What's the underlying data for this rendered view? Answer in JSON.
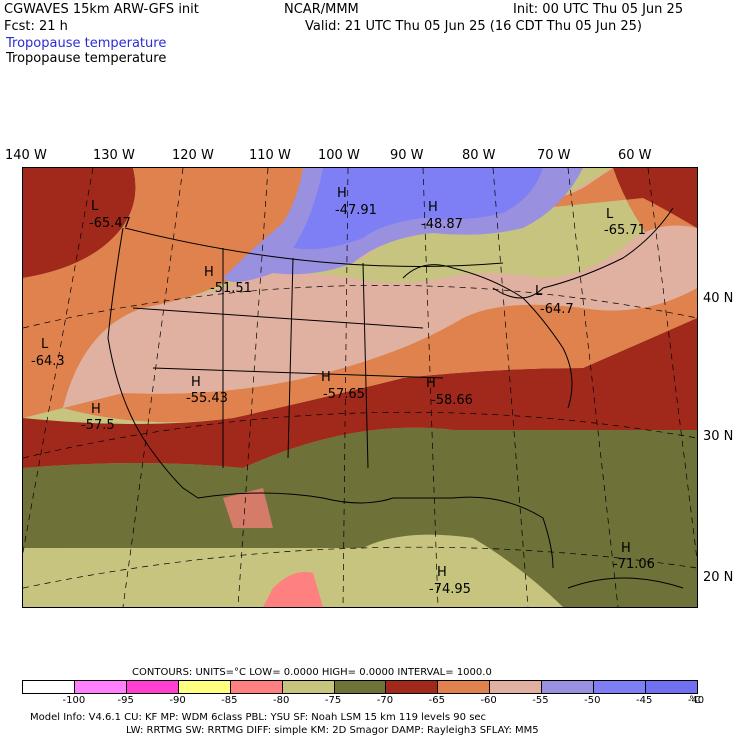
{
  "header": {
    "model": "CGWAVES 15km ARW-GFS init",
    "center": "NCAR/MMM",
    "init": "Init: 00 UTC Thu 05 Jun 25",
    "fcst": "Fcst:   21 h",
    "valid": "Valid: 21 UTC Thu 05 Jun 25 (16 CDT Thu 05 Jun 25)",
    "field_blue": "Tropopause temperature",
    "field_black": "Tropopause temperature"
  },
  "axes": {
    "longitudes": [
      "140 W",
      "130 W",
      "120 W",
      "110 W",
      "100 W",
      "90 W",
      "80 W",
      "70 W",
      "60 W"
    ],
    "latitudes": [
      "40 N",
      "30 N",
      "20 N"
    ]
  },
  "map_labels": [
    {
      "hl": "L",
      "value": "-65.47"
    },
    {
      "hl": "H",
      "value": "-47.91"
    },
    {
      "hl": "H",
      "value": "-48.87"
    },
    {
      "hl": "L",
      "value": "-65.71"
    },
    {
      "hl": "H",
      "value": "-51.51"
    },
    {
      "hl": "L",
      "value": "-64.7"
    },
    {
      "hl": "L",
      "value": "-64.3"
    },
    {
      "hl": "H",
      "value": "-55.43"
    },
    {
      "hl": "H",
      "value": "-57.65"
    },
    {
      "hl": "H",
      "value": "-58.66"
    },
    {
      "hl": "H",
      "value": "-57.5"
    },
    {
      "hl": "H",
      "value": "-71.06"
    },
    {
      "hl": "H",
      "value": "-74.95"
    }
  ],
  "contours_line": "CONTOURS:  UNITS=°C  LOW=  0.0000        HIGH=  0.0000        INTERVAL=   1000.0",
  "colorbar": {
    "colors": [
      "#ffffff",
      "#ff80ff",
      "#ff40d0",
      "#ffff80",
      "#ff8080",
      "#c6c47e",
      "#6e7138",
      "#a0291c",
      "#e0824e",
      "#e0b0a0",
      "#9a90e0",
      "#7f7ff5",
      "#7070f0"
    ],
    "labels": [
      "-100",
      "-95",
      "-90",
      "-85",
      "-80",
      "-75",
      "-70",
      "-65",
      "-60",
      "-55",
      "-50",
      "-45",
      "-40"
    ],
    "unit": "°C"
  },
  "footer": {
    "line1": "Model Info: V4.6.1     CU: KF          MP: WDM 6class   PBL: YSU          SF: Noah LSM        15 km   119 levels    90 sec",
    "line2": "LW: RRTMG      SW: RRTMG    DIFF: simple KM: 2D Smagor DAMP: Rayleigh3   SFLAY: MM5"
  }
}
